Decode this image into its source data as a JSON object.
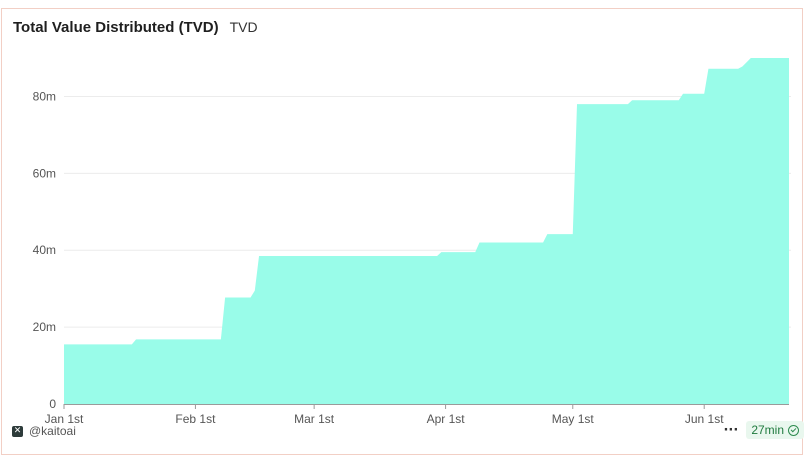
{
  "header": {
    "title": "Total Value Distributed (TVD)",
    "subtitle": "TVD"
  },
  "footer": {
    "handle": "@kaitoai",
    "more_label": "···",
    "updated": "27min"
  },
  "colors": {
    "area_fill": "#99fce9",
    "grid": "#ececec",
    "axis": "#9a9a9a",
    "tick_text": "#555555"
  },
  "chart_data": {
    "type": "area",
    "title": "Total Value Distributed (TVD)",
    "x_type": "date",
    "xlim": [
      "2025-01-01",
      "2025-06-21"
    ],
    "ylim": [
      0,
      90000000
    ],
    "grid": "horizontal",
    "y_ticks": [
      {
        "value": 0,
        "label": "0"
      },
      {
        "value": 20000000,
        "label": "20m"
      },
      {
        "value": 40000000,
        "label": "40m"
      },
      {
        "value": 60000000,
        "label": "60m"
      },
      {
        "value": 80000000,
        "label": "80m"
      }
    ],
    "x_ticks": [
      {
        "date": "2025-01-01",
        "label": "Jan 1st"
      },
      {
        "date": "2025-02-01",
        "label": "Feb 1st"
      },
      {
        "date": "2025-03-01",
        "label": "Mar 1st"
      },
      {
        "date": "2025-04-01",
        "label": "Apr 1st"
      },
      {
        "date": "2025-05-01",
        "label": "May 1st"
      },
      {
        "date": "2025-06-01",
        "label": "Jun 1st"
      }
    ],
    "series": [
      {
        "points": [
          {
            "x": "2025-01-01",
            "y": 15500000
          },
          {
            "x": "2025-01-17",
            "y": 15500000
          },
          {
            "x": "2025-01-18",
            "y": 16800000
          },
          {
            "x": "2025-02-07",
            "y": 16800000
          },
          {
            "x": "2025-02-08",
            "y": 27700000
          },
          {
            "x": "2025-02-14",
            "y": 27700000
          },
          {
            "x": "2025-02-15",
            "y": 29500000
          },
          {
            "x": "2025-02-16",
            "y": 38500000
          },
          {
            "x": "2025-03-30",
            "y": 38500000
          },
          {
            "x": "2025-03-31",
            "y": 39500000
          },
          {
            "x": "2025-04-08",
            "y": 39500000
          },
          {
            "x": "2025-04-09",
            "y": 42000000
          },
          {
            "x": "2025-04-24",
            "y": 42000000
          },
          {
            "x": "2025-04-25",
            "y": 44200000
          },
          {
            "x": "2025-05-01",
            "y": 44200000
          },
          {
            "x": "2025-05-02",
            "y": 78000000
          },
          {
            "x": "2025-05-14",
            "y": 78000000
          },
          {
            "x": "2025-05-15",
            "y": 79000000
          },
          {
            "x": "2025-05-26",
            "y": 79000000
          },
          {
            "x": "2025-05-27",
            "y": 80700000
          },
          {
            "x": "2025-06-01",
            "y": 80700000
          },
          {
            "x": "2025-06-02",
            "y": 87200000
          },
          {
            "x": "2025-06-09",
            "y": 87200000
          },
          {
            "x": "2025-06-10",
            "y": 87800000
          },
          {
            "x": "2025-06-12",
            "y": 90000000
          },
          {
            "x": "2025-06-21",
            "y": 90000000
          }
        ]
      }
    ]
  }
}
